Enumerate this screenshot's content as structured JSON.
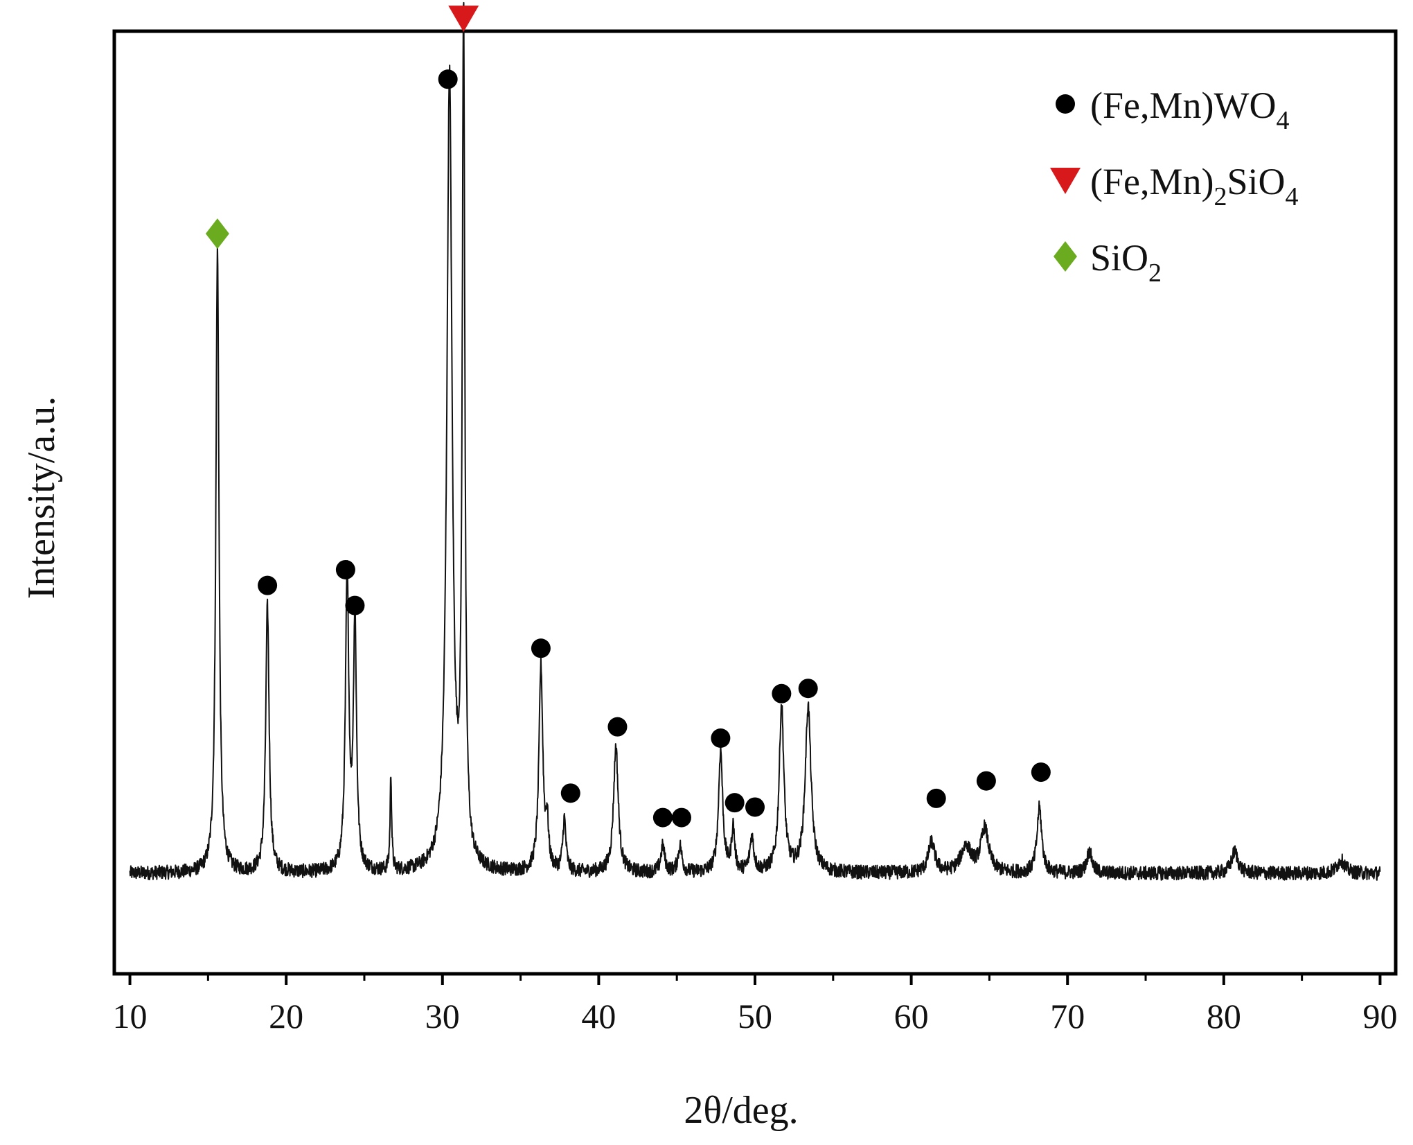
{
  "chart_data": {
    "type": "line",
    "xlabel": "2θ/deg.",
    "ylabel": "Intensity/a.u.",
    "xlim": [
      9,
      91
    ],
    "ylim": [
      -8,
      100
    ],
    "x_ticks": [
      10,
      20,
      30,
      40,
      50,
      60,
      70,
      80,
      90
    ],
    "x_tick_labels": [
      "10",
      "20",
      "30",
      "40",
      "50",
      "60",
      "70",
      "80",
      "90"
    ],
    "y_ticks_shown": false,
    "grid": false,
    "legend_position": "top-right",
    "colors": {
      "line": "#111111",
      "fe_mn_wo4": "#000000",
      "fe_mn2_sio4": "#d7191c",
      "sio2": "#6aab1f",
      "axes": "#000000"
    },
    "legend": [
      {
        "marker": "circle",
        "color": "#000000",
        "main": "(Fe,Mn)WO",
        "sub": "4",
        "tail": ""
      },
      {
        "marker": "triangle-down",
        "color": "#d7191c",
        "main": "(Fe,Mn)",
        "sub": "2",
        "tail": "SiO",
        "sub2": "4"
      },
      {
        "marker": "diamond",
        "color": "#6aab1f",
        "main": "SiO",
        "sub": "2",
        "tail": ""
      }
    ],
    "series": [
      {
        "baseline": 3.5,
        "peaks": [
          {
            "x": 15.6,
            "h": 71.5,
            "w": 0.12
          },
          {
            "x": 18.8,
            "h": 30.5,
            "w": 0.13
          },
          {
            "x": 23.9,
            "h": 33.5,
            "w": 0.13
          },
          {
            "x": 24.4,
            "h": 28.5,
            "w": 0.12
          },
          {
            "x": 26.7,
            "h": 11.0,
            "w": 0.06
          },
          {
            "x": 30.45,
            "h": 91.0,
            "w": 0.2
          },
          {
            "x": 31.35,
            "h": 96.5,
            "w": 0.1
          },
          {
            "x": 36.3,
            "h": 23.5,
            "w": 0.15
          },
          {
            "x": 36.7,
            "h": 5.0,
            "w": 0.1
          },
          {
            "x": 37.8,
            "h": 6.0,
            "w": 0.12
          },
          {
            "x": 41.1,
            "h": 14.5,
            "w": 0.18
          },
          {
            "x": 44.1,
            "h": 3.0,
            "w": 0.15
          },
          {
            "x": 45.2,
            "h": 3.0,
            "w": 0.15
          },
          {
            "x": 47.8,
            "h": 14.0,
            "w": 0.16
          },
          {
            "x": 48.6,
            "h": 5.0,
            "w": 0.12
          },
          {
            "x": 49.8,
            "h": 4.0,
            "w": 0.15
          },
          {
            "x": 51.7,
            "h": 19.0,
            "w": 0.18
          },
          {
            "x": 53.4,
            "h": 19.0,
            "w": 0.22
          },
          {
            "x": 61.3,
            "h": 3.5,
            "w": 0.25
          },
          {
            "x": 63.5,
            "h": 3.0,
            "w": 0.4
          },
          {
            "x": 64.7,
            "h": 5.0,
            "w": 0.3
          },
          {
            "x": 68.2,
            "h": 7.5,
            "w": 0.18
          },
          {
            "x": 71.4,
            "h": 2.5,
            "w": 0.2
          },
          {
            "x": 80.7,
            "h": 2.5,
            "w": 0.25
          },
          {
            "x": 87.5,
            "h": 1.5,
            "w": 0.3
          }
        ]
      }
    ],
    "markers": [
      {
        "type": "diamond",
        "x": 15.6,
        "y": 76.8,
        "phase": "SiO2"
      },
      {
        "type": "triangle-down",
        "x": 31.35,
        "y": 101.5,
        "phase": "(Fe,Mn)2SiO4"
      },
      {
        "type": "circle",
        "x": 30.35,
        "y": 94.5,
        "phase": "(Fe,Mn)WO4"
      },
      {
        "type": "circle",
        "x": 18.8,
        "y": 36.5,
        "phase": "(Fe,Mn)WO4"
      },
      {
        "type": "circle",
        "x": 23.8,
        "y": 38.3,
        "phase": "(Fe,Mn)WO4"
      },
      {
        "type": "circle",
        "x": 24.4,
        "y": 34.2,
        "phase": "(Fe,Mn)WO4"
      },
      {
        "type": "circle",
        "x": 36.3,
        "y": 29.3,
        "phase": "(Fe,Mn)WO4"
      },
      {
        "type": "circle",
        "x": 38.2,
        "y": 12.7,
        "phase": "(Fe,Mn)WO4"
      },
      {
        "type": "circle",
        "x": 41.2,
        "y": 20.3,
        "phase": "(Fe,Mn)WO4"
      },
      {
        "type": "circle",
        "x": 44.1,
        "y": 9.9,
        "phase": "(Fe,Mn)WO4"
      },
      {
        "type": "circle",
        "x": 45.3,
        "y": 9.9,
        "phase": "(Fe,Mn)WO4"
      },
      {
        "type": "circle",
        "x": 47.8,
        "y": 19.0,
        "phase": "(Fe,Mn)WO4"
      },
      {
        "type": "circle",
        "x": 48.7,
        "y": 11.6,
        "phase": "(Fe,Mn)WO4"
      },
      {
        "type": "circle",
        "x": 50.0,
        "y": 11.1,
        "phase": "(Fe,Mn)WO4"
      },
      {
        "type": "circle",
        "x": 51.7,
        "y": 24.1,
        "phase": "(Fe,Mn)WO4"
      },
      {
        "type": "circle",
        "x": 53.4,
        "y": 24.7,
        "phase": "(Fe,Mn)WO4"
      },
      {
        "type": "circle",
        "x": 61.6,
        "y": 12.1,
        "phase": "(Fe,Mn)WO4"
      },
      {
        "type": "circle",
        "x": 64.8,
        "y": 14.1,
        "phase": "(Fe,Mn)WO4"
      },
      {
        "type": "circle",
        "x": 68.3,
        "y": 15.1,
        "phase": "(Fe,Mn)WO4"
      }
    ]
  }
}
